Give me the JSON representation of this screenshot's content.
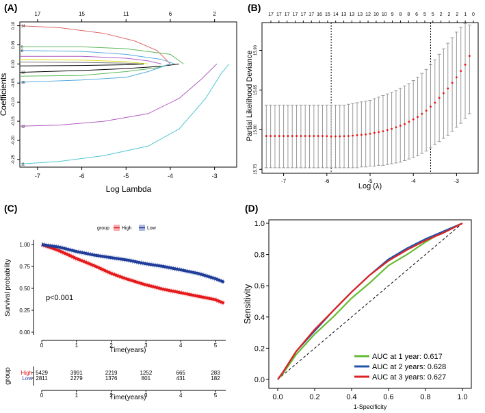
{
  "chart_data": [
    {
      "panel": "(A)",
      "type": "line",
      "xlabel": "Log Lambda",
      "ylabel": "Coefficients",
      "xlim": [
        -7.4,
        -2.5
      ],
      "ylim": [
        -0.27,
        0.11
      ],
      "xticks": [
        -7,
        -6,
        -5,
        -4,
        -3
      ],
      "yticks": [
        -0.25,
        -0.2,
        -0.15,
        -0.1,
        -0.05,
        0.0,
        0.05,
        0.1
      ],
      "top_axis": {
        "positions": [
          -7,
          -6,
          -5,
          -4,
          -3
        ],
        "labels": [
          "17",
          "15",
          "11",
          "6",
          "2"
        ]
      },
      "series": [
        {
          "label": "14",
          "color": "#e06666",
          "points": [
            [
              -7.4,
              0.1
            ],
            [
              -6.5,
              0.095
            ],
            [
              -5.5,
              0.08
            ],
            [
              -4.8,
              0.06
            ],
            [
              -4.3,
              0.035
            ],
            [
              -4.0,
              0.0
            ]
          ]
        },
        {
          "label": "5",
          "color": "#5cb85c",
          "points": [
            [
              -7.4,
              0.045
            ],
            [
              -6,
              0.045
            ],
            [
              -5,
              0.04
            ],
            [
              -4,
              0.025
            ],
            [
              -3.7,
              0.0
            ]
          ]
        },
        {
          "label": "8",
          "color": "#55aadd",
          "points": [
            [
              -7.4,
              0.035
            ],
            [
              -6,
              0.033
            ],
            [
              -5,
              0.025
            ],
            [
              -4.2,
              0.012
            ],
            [
              -3.9,
              0.0
            ]
          ]
        },
        {
          "label": "",
          "color": "#b05cc0",
          "points": [
            [
              -7.4,
              0.02
            ],
            [
              -6,
              0.02
            ],
            [
              -5,
              0.015
            ],
            [
              -4.5,
              0.008
            ],
            [
              -4.2,
              0.0
            ]
          ]
        },
        {
          "label": "",
          "color": "#dddd22",
          "points": [
            [
              -7.4,
              0.012
            ],
            [
              -6,
              0.01
            ],
            [
              -5,
              0.006
            ],
            [
              -4.5,
              0.0
            ]
          ]
        },
        {
          "label": "",
          "color": "#777777",
          "points": [
            [
              -7.4,
              0.005
            ],
            [
              -6,
              0.004
            ],
            [
              -5,
              0.002
            ],
            [
              -4.7,
              0.0
            ]
          ]
        },
        {
          "label": "",
          "color": "#000000",
          "points": [
            [
              -7.4,
              -0.005
            ],
            [
              -6,
              -0.004
            ],
            [
              -5,
              -0.002
            ],
            [
              -4.6,
              0.0
            ]
          ]
        },
        {
          "label": "13",
          "color": "#000000",
          "points": [
            [
              -7.4,
              -0.022
            ],
            [
              -6,
              -0.017
            ],
            [
              -5,
              -0.012
            ],
            [
              -4.2,
              -0.006
            ],
            [
              -3.8,
              0.0
            ]
          ]
        },
        {
          "label": "",
          "color": "#5cb85c",
          "points": [
            [
              -7.4,
              -0.032
            ],
            [
              -6,
              -0.03
            ],
            [
              -5,
              -0.02
            ],
            [
              -4.3,
              -0.01
            ],
            [
              -4.0,
              0.0
            ]
          ]
        },
        {
          "label": "16",
          "color": "#55aadd",
          "points": [
            [
              -7.4,
              -0.048
            ],
            [
              -6,
              -0.042
            ],
            [
              -5,
              -0.035
            ],
            [
              -4.5,
              -0.02
            ],
            [
              -4.0,
              0.0
            ]
          ]
        },
        {
          "label": "12",
          "color": "#b05cc0",
          "points": [
            [
              -7.4,
              -0.163
            ],
            [
              -6.5,
              -0.16
            ],
            [
              -5.5,
              -0.15
            ],
            [
              -4.5,
              -0.13
            ],
            [
              -3.8,
              -0.09
            ],
            [
              -3.3,
              -0.04
            ],
            [
              -2.95,
              0.0
            ]
          ]
        },
        {
          "label": "11",
          "color": "#4fc6d2",
          "points": [
            [
              -7.4,
              -0.262
            ],
            [
              -6.5,
              -0.255
            ],
            [
              -5.5,
              -0.24
            ],
            [
              -4.5,
              -0.215
            ],
            [
              -3.8,
              -0.17
            ],
            [
              -3.2,
              -0.09
            ],
            [
              -2.85,
              -0.025
            ],
            [
              -2.67,
              0.0
            ]
          ]
        }
      ]
    },
    {
      "panel": "(B)",
      "type": "scatter",
      "xlabel": "Log (λ)",
      "ylabel": "Partial Likelihood Deviance",
      "xlim": [
        -7.5,
        -2.5
      ],
      "ylim": [
        15.745,
        15.935
      ],
      "xticks": [
        -7,
        -6,
        -5,
        -4,
        -3
      ],
      "yticks": [
        15.75,
        15.8,
        15.85,
        15.9
      ],
      "vlines": [
        -5.9,
        -3.6
      ],
      "top_axis_labels": [
        "17",
        "17",
        "17",
        "17",
        "17",
        "17",
        "16",
        "15",
        "14",
        "13",
        "13",
        "13",
        "12",
        "10",
        "10",
        "9",
        "8",
        "8",
        "6",
        "5",
        "5",
        "2",
        "2",
        "2",
        "1",
        "0"
      ],
      "x": [
        -7.4,
        -7.3,
        -7.2,
        -7.1,
        -7.0,
        -6.9,
        -6.8,
        -6.7,
        -6.6,
        -6.5,
        -6.4,
        -6.3,
        -6.2,
        -6.1,
        -6.0,
        -5.9,
        -5.8,
        -5.7,
        -5.6,
        -5.5,
        -5.4,
        -5.3,
        -5.2,
        -5.1,
        -5.0,
        -4.9,
        -4.8,
        -4.7,
        -4.6,
        -4.5,
        -4.4,
        -4.3,
        -4.2,
        -4.1,
        -4.0,
        -3.9,
        -3.8,
        -3.7,
        -3.6,
        -3.5,
        -3.4,
        -3.3,
        -3.2,
        -3.1,
        -3.0,
        -2.9,
        -2.8,
        -2.7
      ],
      "mean": [
        15.792,
        15.792,
        15.792,
        15.792,
        15.792,
        15.792,
        15.792,
        15.792,
        15.792,
        15.792,
        15.792,
        15.792,
        15.792,
        15.792,
        15.7918,
        15.7915,
        15.7915,
        15.7916,
        15.7918,
        15.792,
        15.7925,
        15.793,
        15.7935,
        15.794,
        15.795,
        15.796,
        15.797,
        15.798,
        15.7995,
        15.801,
        15.803,
        15.805,
        15.807,
        15.81,
        15.813,
        15.816,
        15.82,
        15.824,
        15.829,
        15.834,
        15.84,
        15.846,
        15.852,
        15.859,
        15.866,
        15.874,
        15.882,
        15.893
      ],
      "lower": [
        15.752,
        15.752,
        15.752,
        15.752,
        15.752,
        15.752,
        15.752,
        15.752,
        15.752,
        15.752,
        15.752,
        15.752,
        15.752,
        15.752,
        15.752,
        15.752,
        15.752,
        15.752,
        15.752,
        15.752,
        15.752,
        15.752,
        15.753,
        15.753,
        15.754,
        15.754,
        15.755,
        15.755,
        15.756,
        15.757,
        15.758,
        15.759,
        15.761,
        15.763,
        15.765,
        15.767,
        15.77,
        15.773,
        15.777,
        15.781,
        15.785,
        15.789,
        15.793,
        15.798,
        15.803,
        15.808,
        15.814,
        15.82
      ],
      "upper": [
        15.831,
        15.831,
        15.831,
        15.831,
        15.831,
        15.831,
        15.831,
        15.831,
        15.831,
        15.831,
        15.831,
        15.831,
        15.831,
        15.831,
        15.831,
        15.831,
        15.831,
        15.831,
        15.831,
        15.832,
        15.833,
        15.834,
        15.835,
        15.836,
        15.837,
        15.839,
        15.841,
        15.843,
        15.845,
        15.847,
        15.849,
        15.852,
        15.855,
        15.858,
        15.862,
        15.866,
        15.871,
        15.876,
        15.882,
        15.888,
        15.895,
        15.902,
        15.909,
        15.916,
        15.923,
        15.929,
        15.934,
        15.932
      ]
    },
    {
      "panel": "(C)",
      "type": "line",
      "title": "",
      "xlabel": "Time(years)",
      "ylabel": "Survival probability",
      "xlim": [
        -0.3,
        5.4
      ],
      "ylim": [
        -0.04,
        1.04
      ],
      "xticks": [
        0,
        1,
        2,
        3,
        4,
        5
      ],
      "yticks": [
        "0.00",
        "0.25",
        "0.50",
        "0.75",
        "1.00"
      ],
      "legend_title": "group",
      "legend_position": "top",
      "pvalue": "p<0.001",
      "series": [
        {
          "name": "High",
          "color": "#e41a1c",
          "x": [
            0,
            0.5,
            1,
            1.5,
            2,
            2.5,
            3,
            3.5,
            4,
            4.5,
            5,
            5.25
          ],
          "y": [
            1.0,
            0.93,
            0.84,
            0.76,
            0.67,
            0.6,
            0.54,
            0.49,
            0.45,
            0.41,
            0.37,
            0.33
          ]
        },
        {
          "name": "Low",
          "color": "#1f3d99",
          "x": [
            0,
            0.5,
            1,
            1.5,
            2,
            2.5,
            3,
            3.5,
            4,
            4.5,
            5,
            5.25
          ],
          "y": [
            1.0,
            0.97,
            0.92,
            0.88,
            0.85,
            0.82,
            0.78,
            0.75,
            0.71,
            0.67,
            0.61,
            0.57
          ]
        }
      ],
      "risk_table": {
        "ylabel": "group",
        "xlabel": "Time(years)",
        "times": [
          "0",
          "1",
          "2",
          "3",
          "4",
          "5"
        ],
        "rows": [
          {
            "name": "High",
            "color": "#e41a1c",
            "counts": [
              "5429",
              "3991",
              "2219",
              "1252",
              "665",
              "283"
            ]
          },
          {
            "name": "Low",
            "color": "#1f3d99",
            "counts": [
              "2811",
              "2279",
              "1376",
              "801",
              "431",
              "182"
            ]
          }
        ]
      }
    },
    {
      "panel": "(D)",
      "type": "line",
      "xlabel": "1-Specificity",
      "ylabel": "Sensitivity",
      "xlim": [
        -0.05,
        1.05
      ],
      "ylim": [
        -0.05,
        1.05
      ],
      "xticks": [
        "0.0",
        "0.2",
        "0.4",
        "0.6",
        "0.8",
        "1.0"
      ],
      "yticks": [
        "0.0",
        "0.2",
        "0.4",
        "0.6",
        "0.8",
        "1.0"
      ],
      "reference_line": "diagonal dashed",
      "legend_position": "bottom-right",
      "series": [
        {
          "name": "AUC at 1 year: 0.617",
          "color": "#66bb33",
          "x": [
            0,
            0.03,
            0.1,
            0.2,
            0.3,
            0.4,
            0.5,
            0.6,
            0.7,
            0.8,
            0.9,
            1.0
          ],
          "y": [
            0,
            0.04,
            0.16,
            0.29,
            0.4,
            0.52,
            0.62,
            0.73,
            0.8,
            0.88,
            0.95,
            1.0
          ]
        },
        {
          "name": "AUC at 2 years: 0.628",
          "color": "#2255aa",
          "x": [
            0,
            0.03,
            0.1,
            0.2,
            0.3,
            0.4,
            0.5,
            0.6,
            0.7,
            0.8,
            0.9,
            1.0
          ],
          "y": [
            0,
            0.05,
            0.18,
            0.31,
            0.44,
            0.56,
            0.67,
            0.77,
            0.84,
            0.9,
            0.95,
            1.0
          ]
        },
        {
          "name": "AUC at 3 years: 0.627",
          "color": "#dd2222",
          "x": [
            0,
            0.03,
            0.1,
            0.2,
            0.3,
            0.4,
            0.5,
            0.6,
            0.7,
            0.8,
            0.9,
            1.0
          ],
          "y": [
            0,
            0.05,
            0.18,
            0.32,
            0.44,
            0.56,
            0.67,
            0.76,
            0.83,
            0.89,
            0.94,
            1.0
          ]
        }
      ]
    }
  ]
}
